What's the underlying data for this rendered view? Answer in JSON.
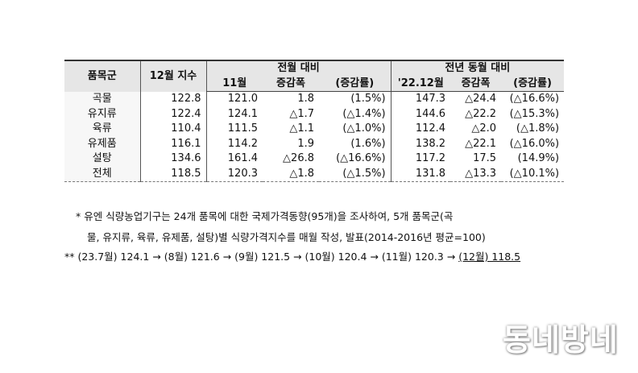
{
  "table": {
    "headers": {
      "category": "품목군",
      "dec_index": "12월 지수",
      "prev_month_group": "전월 대비",
      "prev_year_group": "전년 동월 대비",
      "nov": "11월",
      "change": "증감폭",
      "change_rate": "(증감률)",
      "dec22": "'22.12월",
      "change2": "증감폭",
      "change_rate2": "(증감률)"
    },
    "rows": [
      {
        "category": "곡물",
        "dec": "122.8",
        "nov": "121.0",
        "mchg": "1.8",
        "mrate": "(1.5%)",
        "ly": "147.3",
        "ychg": "△24.4",
        "yrate": "(△16.6%)"
      },
      {
        "category": "유지류",
        "dec": "122.4",
        "nov": "124.1",
        "mchg": "△1.7",
        "mrate": "(△1.4%)",
        "ly": "144.6",
        "ychg": "△22.2",
        "yrate": "(△15.3%)"
      },
      {
        "category": "육류",
        "dec": "110.4",
        "nov": "111.5",
        "mchg": "△1.1",
        "mrate": "(△1.0%)",
        "ly": "112.4",
        "ychg": "△2.0",
        "yrate": "(△1.8%)"
      },
      {
        "category": "유제품",
        "dec": "116.1",
        "nov": "114.2",
        "mchg": "1.9",
        "mrate": "(1.6%)",
        "ly": "138.2",
        "ychg": "△22.1",
        "yrate": "(△16.0%)"
      },
      {
        "category": "설탕",
        "dec": "134.6",
        "nov": "161.4",
        "mchg": "△26.8",
        "mrate": "(△16.6%)",
        "ly": "117.2",
        "ychg": "17.5",
        "yrate": "(14.9%)"
      },
      {
        "category": "전체",
        "dec": "118.5",
        "nov": "120.3",
        "mchg": "△1.8",
        "mrate": "(△1.5%)",
        "ly": "131.8",
        "ychg": "△13.3",
        "yrate": "(△10.1%)"
      }
    ]
  },
  "footnotes": {
    "note1_line1": "* 유엔 식량농업기구는 24개 품목에 대한 국제가격동향(95개)을 조사하여, 5개 품목군(곡",
    "note1_line2": "물, 유지류, 육류, 유제품, 설탕)별 식량가격지수를 매월 작성, 발표(2014-2016년 평균=100)",
    "note2_main": "** (23.7월) 124.1 → (8월) 121.6 → (9월) 121.5 → (10월) 120.4 → (11월) 120.3 → ",
    "note2_last": "(12월) 118.5"
  },
  "watermark": "동네방네"
}
